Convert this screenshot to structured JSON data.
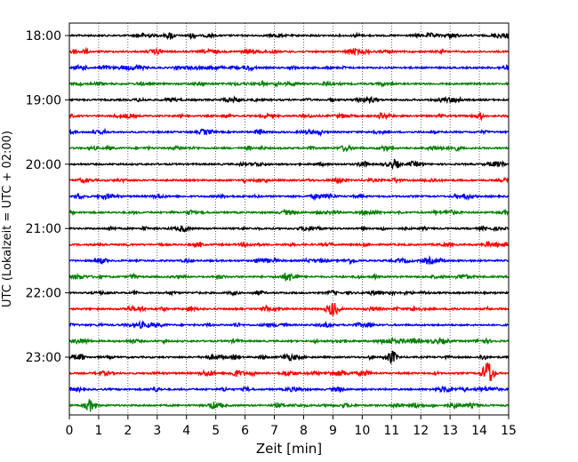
{
  "chart_data": {
    "type": "line",
    "title": "",
    "xlabel": "Zeit  [min]",
    "ylabel": "UTC (Lokalzeit = UTC + 02:00)",
    "xlim": [
      0,
      15
    ],
    "x_ticks": [
      "0",
      "1",
      "2",
      "3",
      "4",
      "5",
      "6",
      "7",
      "8",
      "9",
      "10",
      "11",
      "12",
      "13",
      "14",
      "15"
    ],
    "y_tick_labels": [
      "18:00",
      "19:00",
      "20:00",
      "21:00",
      "22:00",
      "23:00"
    ],
    "grid": "vertical dotted",
    "trace_interval_minutes": 15,
    "start_time": "18:00",
    "trace_count": 24,
    "trace_colors": [
      "#000000",
      "#ff0000",
      "#0000ff",
      "#008000"
    ],
    "events": [
      {
        "trace": 21,
        "x_min": 14.3,
        "amplitude": 1.0
      },
      {
        "trace": 17,
        "x_min": 9.0,
        "amplitude": 0.55
      },
      {
        "trace": 20,
        "x_min": 11.0,
        "amplitude": 0.5
      },
      {
        "trace": 23,
        "x_min": 0.7,
        "amplitude": 0.45
      }
    ]
  }
}
